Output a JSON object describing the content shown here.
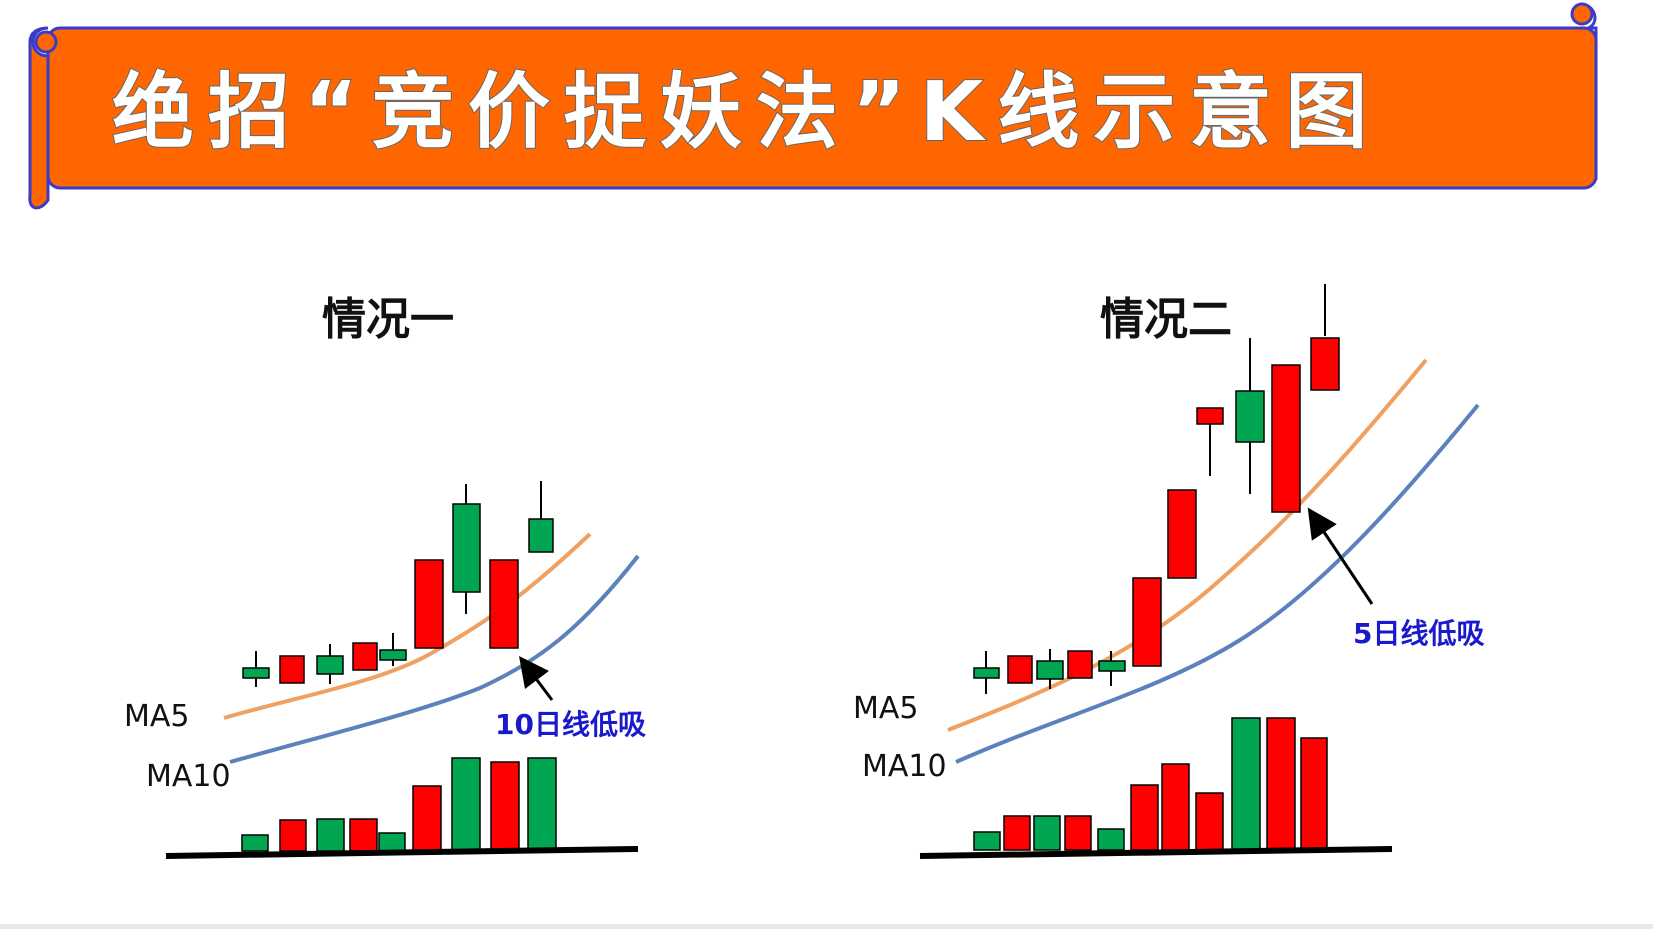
{
  "title": "绝招“竞价捉妖法”K线示意图",
  "colors": {
    "banner": "#ff6600",
    "banner_border": "#3b3bc8",
    "up": "#ff0000",
    "down": "#00a651",
    "ma5": "#f0a060",
    "ma10": "#5b82bc",
    "note": "#1a1acc"
  },
  "panels": [
    {
      "title": "情况一",
      "ma5_label": "MA5",
      "ma10_label": "MA10",
      "note": "10日线低吸",
      "icons": [
        "arrow-icon"
      ]
    },
    {
      "title": "情况二",
      "ma5_label": "MA5",
      "ma10_label": "MA10",
      "note": "5日线低吸",
      "icons": [
        "arrow-icon"
      ]
    }
  ]
}
